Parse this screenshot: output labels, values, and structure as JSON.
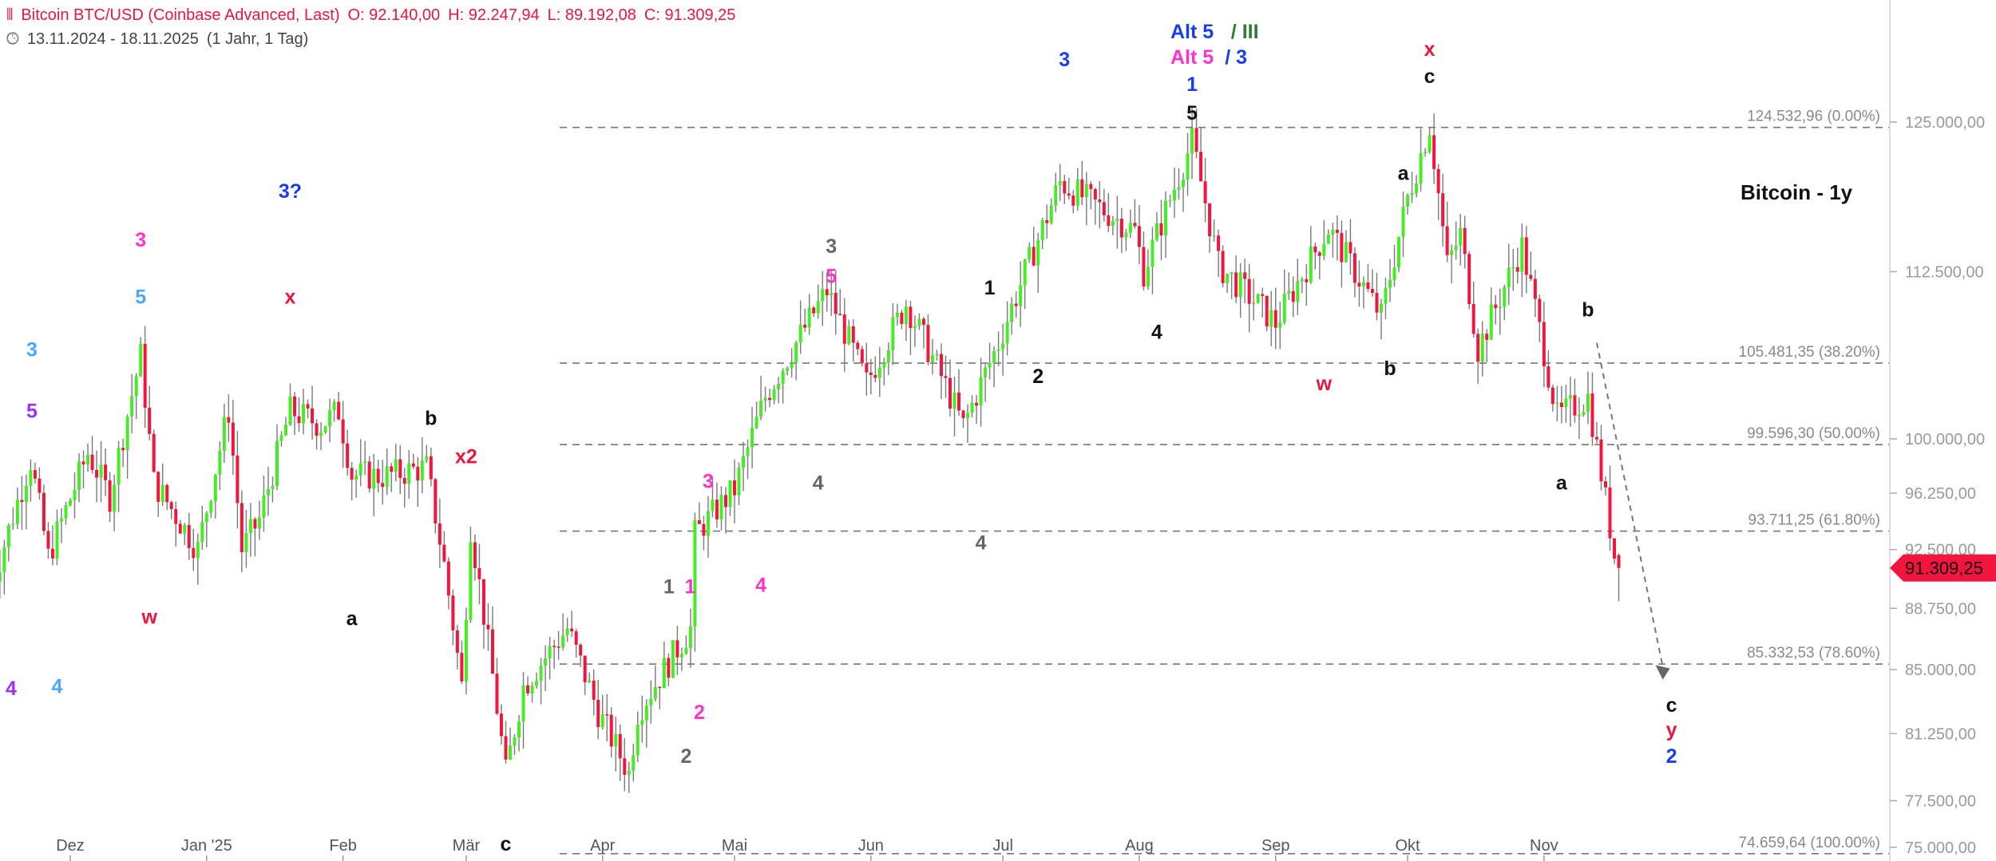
{
  "header": {
    "title": "Bitcoin BTC/USD (Coinbase Advanced, Last)",
    "open": "O: 92.140,00",
    "high": "H: 92.247,94",
    "low": "L: 89.192,08",
    "close": "C: 91.309,25",
    "range": "13.11.2024 - 18.11.2025",
    "period": "(1 Jahr, 1 Tag)",
    "icons": [
      "candlestick-icon",
      "clock-icon"
    ]
  },
  "chart_data": {
    "type": "candlestick",
    "title": "Bitcoin - 1y",
    "y_scale": "log",
    "ylim": [
      74000,
      131000
    ],
    "date_range": [
      "2024-11-13",
      "2025-11-18"
    ],
    "y_ticks": [
      "125.000,00",
      "112.500,00",
      "100.000,00",
      "96.250,00",
      "92.500,00",
      "88.750,00",
      "85.000,00",
      "81.250,00",
      "77.500,00",
      "75.000,00"
    ],
    "y_tick_values": [
      125000,
      112500,
      100000,
      96250,
      92500,
      88750,
      85000,
      81250,
      77500,
      75000
    ],
    "x_ticks": [
      {
        "label": "Dez",
        "date": "2024-12-01"
      },
      {
        "label": "Jan '25",
        "date": "2025-01-01"
      },
      {
        "label": "Feb",
        "date": "2025-02-01"
      },
      {
        "label": "Mär",
        "date": "2025-03-01"
      },
      {
        "label": "Apr",
        "date": "2025-04-01"
      },
      {
        "label": "Mai",
        "date": "2025-05-01"
      },
      {
        "label": "Jun",
        "date": "2025-06-01"
      },
      {
        "label": "Jul",
        "date": "2025-07-01"
      },
      {
        "label": "Aug",
        "date": "2025-08-01"
      },
      {
        "label": "Sep",
        "date": "2025-09-01"
      },
      {
        "label": "Okt",
        "date": "2025-10-01"
      },
      {
        "label": "Nov",
        "date": "2025-11-01"
      }
    ],
    "close_path": [
      [
        "2024-11-13",
        90000
      ],
      [
        "2024-11-22",
        98500
      ],
      [
        "2024-11-26",
        92000
      ],
      [
        "2024-12-05",
        99000
      ],
      [
        "2024-12-10",
        96000
      ],
      [
        "2024-12-17",
        106000
      ],
      [
        "2024-12-20",
        97000
      ],
      [
        "2024-12-30",
        92500
      ],
      [
        "2025-01-06",
        102000
      ],
      [
        "2025-01-09",
        92500
      ],
      [
        "2025-01-13",
        94500
      ],
      [
        "2025-01-20",
        102000
      ],
      [
        "2025-01-27",
        101000
      ],
      [
        "2025-01-31",
        102000
      ],
      [
        "2025-02-03",
        97500
      ],
      [
        "2025-02-10",
        97400
      ],
      [
        "2025-02-20",
        98000
      ],
      [
        "2025-02-24",
        91500
      ],
      [
        "2025-02-28",
        84000
      ],
      [
        "2025-03-02",
        94000
      ],
      [
        "2025-03-10",
        79000
      ],
      [
        "2025-03-14",
        84000
      ],
      [
        "2025-03-24",
        87500
      ],
      [
        "2025-03-31",
        82500
      ],
      [
        "2025-04-07",
        79000
      ],
      [
        "2025-04-09",
        82500
      ],
      [
        "2025-04-21",
        87500
      ],
      [
        "2025-04-22",
        93500
      ],
      [
        "2025-05-01",
        96500
      ],
      [
        "2025-05-08",
        103000
      ],
      [
        "2025-05-22",
        111000
      ],
      [
        "2025-05-31",
        104000
      ],
      [
        "2025-06-09",
        110000
      ],
      [
        "2025-06-17",
        104500
      ],
      [
        "2025-06-22",
        100900
      ],
      [
        "2025-06-30",
        107000
      ],
      [
        "2025-07-10",
        116000
      ],
      [
        "2025-07-14",
        119800
      ],
      [
        "2025-07-31",
        115800
      ],
      [
        "2025-08-02",
        112500
      ],
      [
        "2025-08-13",
        123300
      ],
      [
        "2025-08-19",
        113000
      ],
      [
        "2025-09-01",
        108500
      ],
      [
        "2025-09-13",
        116000
      ],
      [
        "2025-09-25",
        109000
      ],
      [
        "2025-10-01",
        118500
      ],
      [
        "2025-10-06",
        124700
      ],
      [
        "2025-10-10",
        113000
      ],
      [
        "2025-10-13",
        115500
      ],
      [
        "2025-10-17",
        106500
      ],
      [
        "2025-10-27",
        114500
      ],
      [
        "2025-11-04",
        101500
      ],
      [
        "2025-11-11",
        103000
      ],
      [
        "2025-11-17",
        92140
      ]
    ],
    "last_candle": {
      "date": "2025-11-18",
      "open": 92140.0,
      "high": 92247.94,
      "low": 89192.08,
      "close": 91309.25
    },
    "current_price": {
      "value": 91309.25,
      "label": "91.309,25",
      "color": "#f2163e"
    },
    "fib_levels": [
      {
        "value": 124532.96,
        "label": "124.532,96 (0.00%)"
      },
      {
        "value": 105481.35,
        "label": "105.481,35 (38.20%)"
      },
      {
        "value": 99596.3,
        "label": "99.596,30 (50.00%)"
      },
      {
        "value": 93711.25,
        "label": "93.711,25 (61.80%)"
      },
      {
        "value": 85332.53,
        "label": "85.332,53 (78.60%)"
      },
      {
        "value": 74659.64,
        "label": "74.659,64 (100.00%)"
      }
    ],
    "projection_arrow": {
      "from": [
        "2025-11-13",
        107000
      ],
      "to": [
        "2025-11-28",
        84500
      ],
      "style": "dashed"
    },
    "annotations": [
      {
        "text": "3",
        "date": "2024-11-13",
        "price": 106000,
        "color": "#4da6ff"
      },
      {
        "text": "5",
        "date": "2024-11-13",
        "price": 101500,
        "color": "#9b30ff"
      },
      {
        "text": "4",
        "date": "2024-11-13",
        "price": 83500,
        "color": "#9b30ff"
      },
      {
        "text": "4",
        "date": "2024-11-28",
        "price": 83600,
        "color": "#4da6ff"
      },
      {
        "text": "3",
        "date": "2024-12-17",
        "price": 114500,
        "color": "#ff33cc"
      },
      {
        "text": "5",
        "date": "2024-12-17",
        "price": 110000,
        "color": "#4da6ff"
      },
      {
        "text": "w",
        "date": "2024-12-19",
        "price": 87800,
        "color": "#e8173c"
      },
      {
        "text": "3?",
        "date": "2025-01-20",
        "price": 118500,
        "color": "#1a3cf0"
      },
      {
        "text": "x",
        "date": "2025-01-20",
        "price": 110000,
        "color": "#e8173c"
      },
      {
        "text": "a",
        "date": "2025-02-03",
        "price": 87700,
        "color": "#111111"
      },
      {
        "text": "b",
        "date": "2025-02-21",
        "price": 101000,
        "color": "#111111"
      },
      {
        "text": "x2",
        "date": "2025-03-01",
        "price": 98300,
        "color": "#e8173c"
      },
      {
        "text": "c",
        "date": "2025-03-10",
        "price": 74300,
        "color": "#111111"
      },
      {
        "text": "1",
        "date": "2025-04-17",
        "price": 89700,
        "color": "#666666"
      },
      {
        "text": "1",
        "date": "2025-04-20",
        "price": 89700,
        "color": "#ff33cc"
      },
      {
        "text": "2",
        "date": "2025-04-23",
        "price": 82100,
        "color": "#ff33cc"
      },
      {
        "text": "2",
        "date": "2025-04-20",
        "price": 79600,
        "color": "#666666"
      },
      {
        "text": "3",
        "date": "2025-04-25",
        "price": 96600,
        "color": "#ff33cc"
      },
      {
        "text": "4",
        "date": "2025-05-07",
        "price": 89800,
        "color": "#ff33cc"
      },
      {
        "text": "4",
        "date": "2025-05-20",
        "price": 96500,
        "color": "#666666"
      },
      {
        "text": "3",
        "date": "2025-05-23",
        "price": 114000,
        "color": "#666666"
      },
      {
        "text": "5",
        "date": "2025-05-23",
        "price": 111600,
        "color": "#ff33cc"
      },
      {
        "text": "4",
        "date": "2025-06-26",
        "price": 92500,
        "color": "#666666"
      },
      {
        "text": "1",
        "date": "2025-06-28",
        "price": 110700,
        "color": "#111111"
      },
      {
        "text": "2",
        "date": "2025-07-09",
        "price": 104000,
        "color": "#111111"
      },
      {
        "text": "3",
        "date": "2025-07-15",
        "price": 130000,
        "color": "#1a3cf0"
      },
      {
        "text": "4",
        "date": "2025-07-36",
        "price": 107300,
        "color": "#111111"
      },
      {
        "text": "Alt 5",
        "date": "2025-08-13",
        "price": 0,
        "color": "#1a3cf0"
      },
      {
        "text": "/ III",
        "date": "2025-08-25",
        "price": 0,
        "color": "#2e7d32"
      },
      {
        "text": "Alt 5",
        "date": "2025-08-13",
        "price": 0,
        "color": "#ff33cc"
      },
      {
        "text": "/ 3",
        "date": "2025-08-23",
        "price": 0,
        "color": "#1a3cf0"
      },
      {
        "text": "1",
        "date": "2025-08-13",
        "price": 131500,
        "color": "#1a3cf0"
      },
      {
        "text": "5",
        "date": "2025-08-13",
        "price": 128800,
        "color": "#111111"
      },
      {
        "text": "a",
        "date": "2025-09-30",
        "price": 120000,
        "color": "#111111"
      },
      {
        "text": "w",
        "date": "2025-09-12",
        "price": 103500,
        "color": "#e8173c"
      },
      {
        "text": "b",
        "date": "2025-09-27",
        "price": 104600,
        "color": "#111111"
      },
      {
        "text": "x",
        "date": "2025-10-06",
        "price": 0,
        "color": "#e8173c"
      },
      {
        "text": "c",
        "date": "2025-10-06",
        "price": 0,
        "color": "#111111"
      },
      {
        "text": "b",
        "date": "2025-11-11",
        "price": 109000,
        "color": "#111111"
      },
      {
        "text": "a",
        "date": "2025-11-05",
        "price": 96500,
        "color": "#111111"
      },
      {
        "text": "c",
        "date": "2025-11-30",
        "price": 82500,
        "color": "#111111"
      },
      {
        "text": "y",
        "date": "2025-11-30",
        "price": 0,
        "color": "#e8173c"
      },
      {
        "text": "2",
        "date": "2025-11-30",
        "price": 0,
        "color": "#1a3cf0"
      }
    ],
    "colors": {
      "up": "#44ee22",
      "down": "#f2163e",
      "wick": "#7a7a7a",
      "fib_line": "#777777",
      "axis_text": "#9a9a9a"
    }
  }
}
